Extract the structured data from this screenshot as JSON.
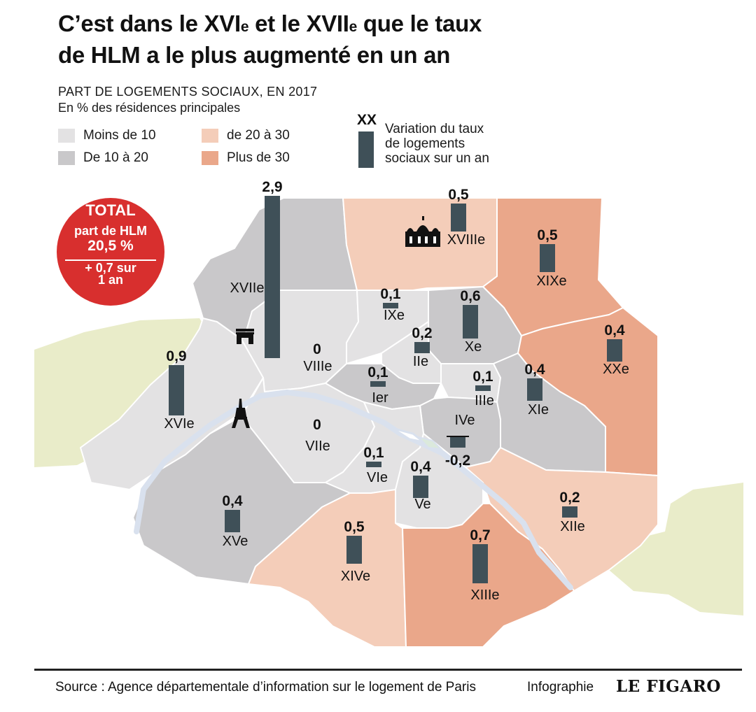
{
  "title": {
    "line1_a": "C’est dans le XVI",
    "sup1": "e",
    "line1_b": " et le XVII",
    "sup2": "e",
    "line1_c": " que le taux",
    "line2": "de HLM a le plus augmenté en un an"
  },
  "legend": {
    "title": "PART DE LOGEMENTS SOCIAUX, EN 2017",
    "subtitle": "En % des résidences principales",
    "items": [
      {
        "label": "Moins de 10",
        "color": "#e3e2e3"
      },
      {
        "label": "De 10 à 20",
        "color": "#c9c8ca"
      },
      {
        "label": "de 20 à 30",
        "color": "#f4cdb9"
      },
      {
        "label": "Plus de 30",
        "color": "#eaa78a"
      }
    ],
    "variation_key": {
      "symbol": "XX",
      "text_lines": [
        "Variation du taux",
        "de logements",
        "sociaux sur un an"
      ],
      "bar_color": "#3f5058"
    }
  },
  "total_badge": {
    "title": "TOTAL",
    "line2": "part de HLM",
    "line3": "20,5 %",
    "line4a": "+ 0,7 sur",
    "line4b": "1 an",
    "color": "#d82f2e"
  },
  "map": {
    "colors": {
      "outside_green": "#e9ecc9",
      "seine": "#d9e1ee",
      "bar": "#3f5058",
      "border": "#ffffff"
    },
    "arrondissements": [
      {
        "name": "Ier",
        "value": "0,1",
        "value_num": 0.1,
        "category": "Moins de 10"
      },
      {
        "name": "IIe",
        "value": "0,2",
        "value_num": 0.2,
        "category": "Moins de 10"
      },
      {
        "name": "IIIe",
        "value": "0,1",
        "value_num": 0.1,
        "category": "Moins de 10"
      },
      {
        "name": "IVe",
        "value": "-0,2",
        "value_num": -0.2,
        "category": "De 10 à 20"
      },
      {
        "name": "Ve",
        "value": "0,4",
        "value_num": 0.4,
        "category": "Moins de 10"
      },
      {
        "name": "VIe",
        "value": "0,1",
        "value_num": 0.1,
        "category": "Moins de 10"
      },
      {
        "name": "VIIe",
        "value": "0",
        "value_num": 0,
        "category": "Moins de 10"
      },
      {
        "name": "VIIIe",
        "value": "0",
        "value_num": 0,
        "category": "Moins de 10"
      },
      {
        "name": "IXe",
        "value": "0,1",
        "value_num": 0.1,
        "category": "Moins de 10"
      },
      {
        "name": "Xe",
        "value": "0,6",
        "value_num": 0.6,
        "category": "De 10 à 20"
      },
      {
        "name": "XIe",
        "value": "0,4",
        "value_num": 0.4,
        "category": "De 10 à 20"
      },
      {
        "name": "XIIe",
        "value": "0,2",
        "value_num": 0.2,
        "category": "de 20 à 30"
      },
      {
        "name": "XIIIe",
        "value": "0,7",
        "value_num": 0.7,
        "category": "Plus de 30"
      },
      {
        "name": "XIVe",
        "value": "0,5",
        "value_num": 0.5,
        "category": "de 20 à 30"
      },
      {
        "name": "XVe",
        "value": "0,4",
        "value_num": 0.4,
        "category": "De 10 à 20"
      },
      {
        "name": "XVIe",
        "value": "0,9",
        "value_num": 0.9,
        "category": "Moins de 10"
      },
      {
        "name": "XVIIe",
        "value": "2,9",
        "value_num": 2.9,
        "category": "De 10 à 20"
      },
      {
        "name": "XVIIIe",
        "value": "0,5",
        "value_num": 0.5,
        "category": "de 20 à 30"
      },
      {
        "name": "XIXe",
        "value": "0,5",
        "value_num": 0.5,
        "category": "Plus de 30"
      },
      {
        "name": "XXe",
        "value": "0,4",
        "value_num": 0.4,
        "category": "Plus de 30"
      }
    ],
    "landmarks": [
      "arc-de-triomphe-icon",
      "eiffel-tower-icon",
      "sacre-coeur-icon"
    ]
  },
  "footer": {
    "source": "Source : Agence départementale d’information sur le logement de Paris",
    "credit": "Infographie",
    "brand": "LE FIGARO"
  }
}
